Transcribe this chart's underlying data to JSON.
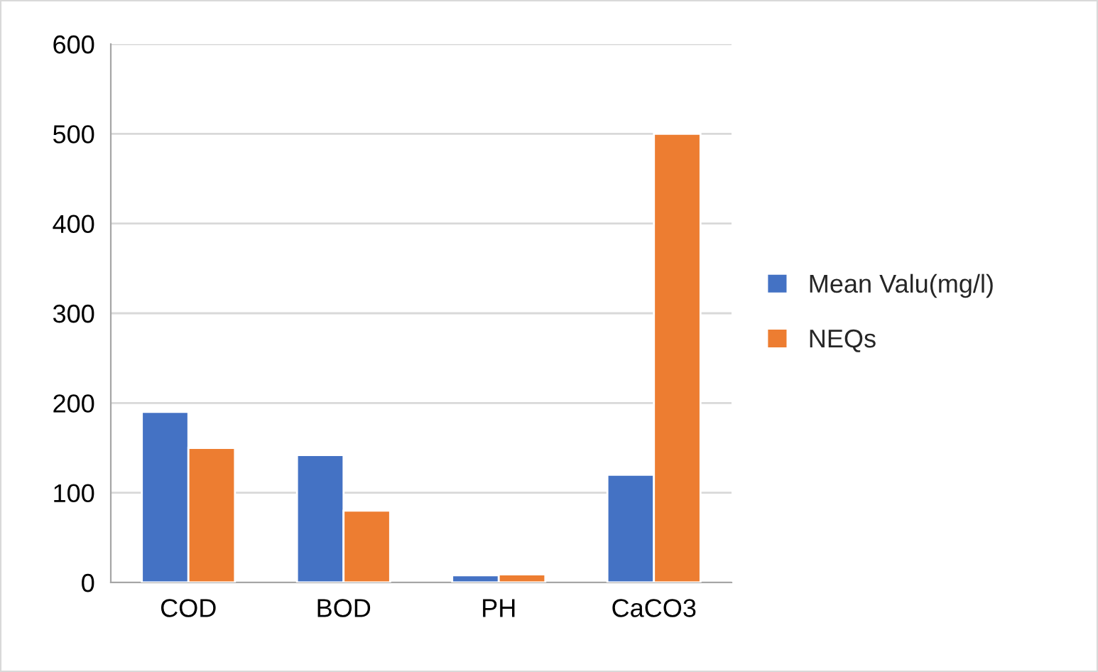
{
  "chart_data": {
    "type": "bar",
    "categories": [
      "COD",
      "BOD",
      "PH",
      "CaCO3"
    ],
    "series": [
      {
        "name": "Mean Valu(mg/l)",
        "color": "#4472c4",
        "values": [
          190,
          142,
          8,
          120
        ]
      },
      {
        "name": "NEQs",
        "color": "#ed7d31",
        "values": [
          150,
          80,
          9,
          500
        ]
      }
    ],
    "ylim": [
      0,
      600
    ],
    "yticks": [
      0,
      100,
      200,
      300,
      400,
      500,
      600
    ],
    "grid": "y",
    "legend": "right"
  }
}
